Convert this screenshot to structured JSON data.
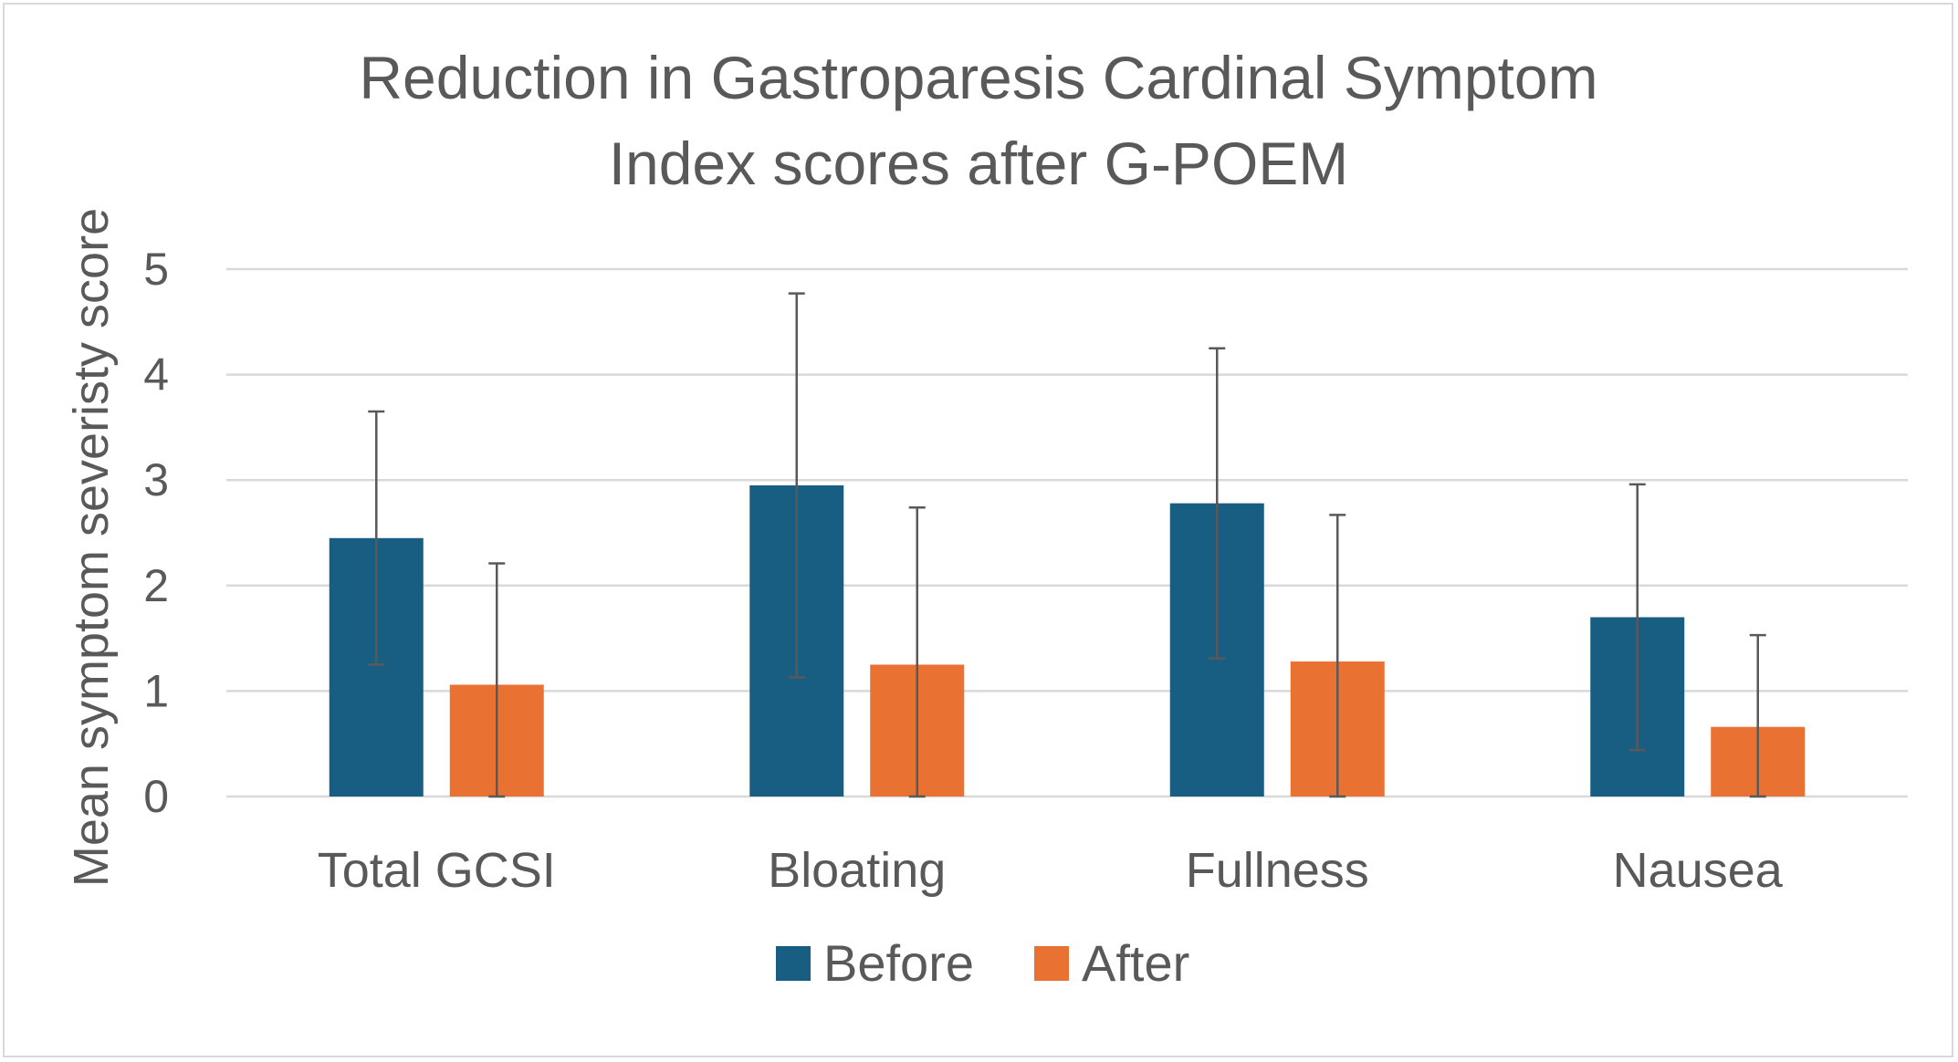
{
  "chart_data": {
    "type": "bar",
    "title_lines": [
      "Reduction in Gastroparesis Cardinal Symptom",
      "Index scores after G-POEM"
    ],
    "ylabel": "Mean symptom severisty score",
    "xlabel": "",
    "ylim": [
      0,
      5
    ],
    "yticks": [
      "0",
      "1",
      "2",
      "3",
      "4",
      "5"
    ],
    "grid": true,
    "legend_position": "bottom",
    "categories": [
      "Total GCSI",
      "Bloating",
      "Fullness",
      "Nausea"
    ],
    "series": [
      {
        "name": "Before",
        "color": "#175e82",
        "values": [
          2.45,
          2.95,
          2.78,
          1.7
        ],
        "error": [
          1.2,
          1.82,
          1.47,
          1.26
        ]
      },
      {
        "name": "After",
        "color": "#e97132",
        "values": [
          1.06,
          1.25,
          1.28,
          0.66
        ],
        "error": [
          1.15,
          1.49,
          1.39,
          0.87
        ]
      }
    ]
  }
}
